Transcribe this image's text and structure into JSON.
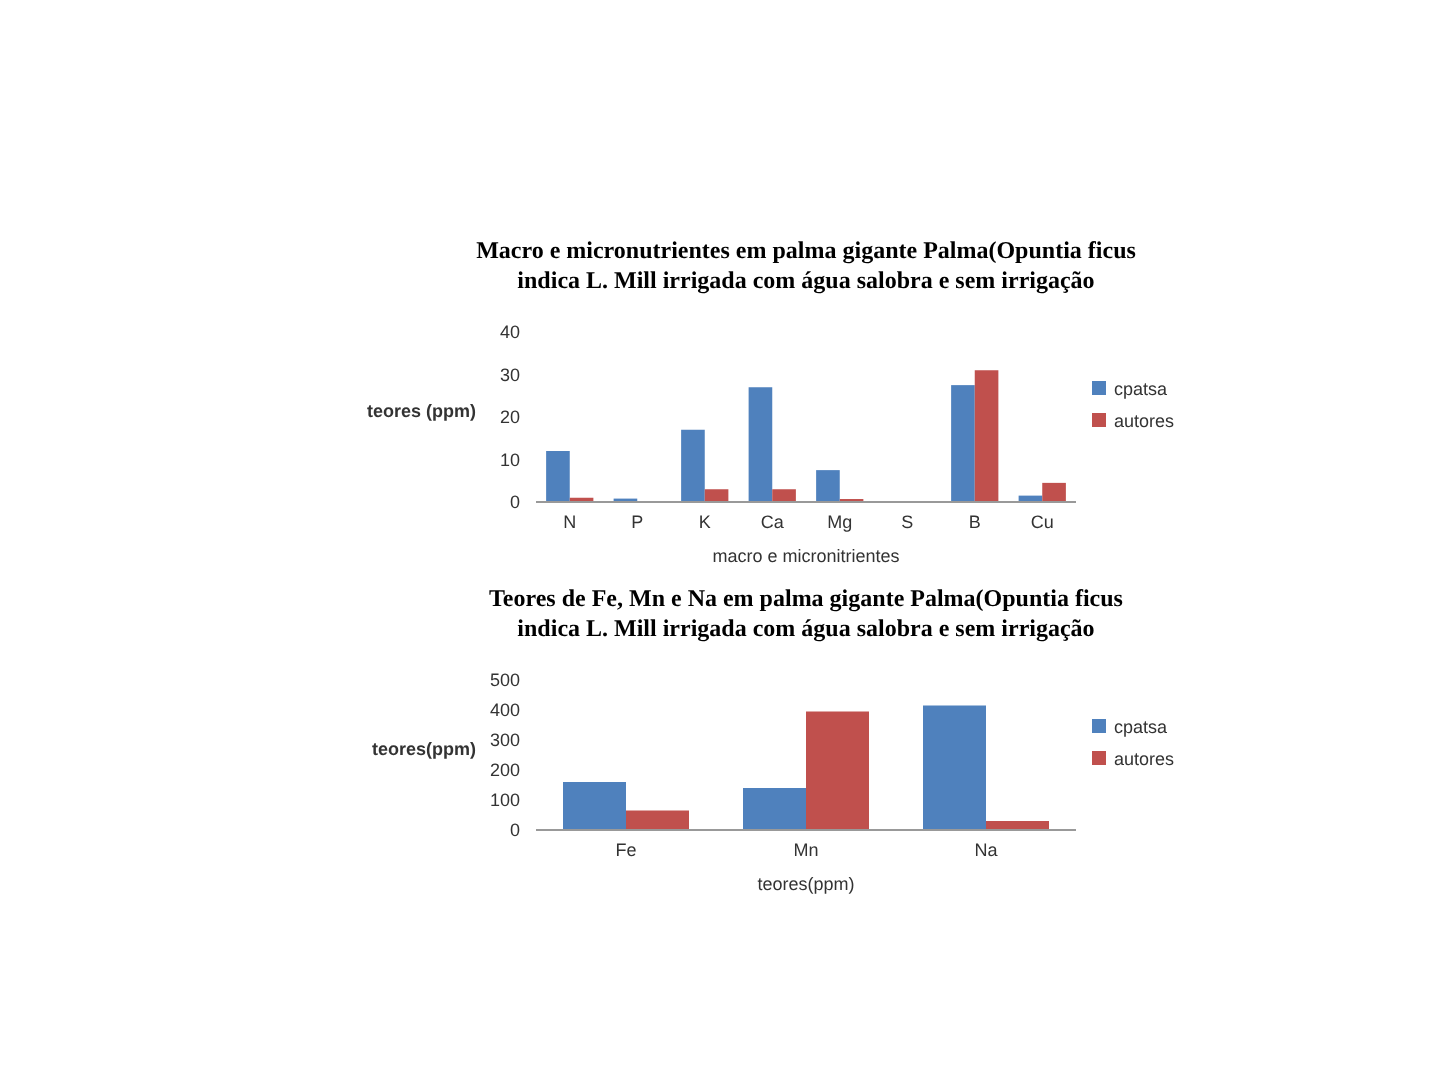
{
  "chart_data": [
    {
      "type": "bar",
      "title": "Macro e micronutrientes em palma gigante Palma(Opuntia ficus indica L. Mill irrigada com água salobra e sem irrigação",
      "xlabel": "macro e micronitrientes",
      "ylabel": "teores (ppm)",
      "categories": [
        "N",
        "P",
        "K",
        "Ca",
        "Mg",
        "S",
        "B",
        "Cu"
      ],
      "series": [
        {
          "name": "cpatsa",
          "color": "#4f81bd",
          "values": [
            12,
            0.8,
            17,
            27,
            7.5,
            0,
            27.5,
            1.5
          ]
        },
        {
          "name": "autores",
          "color": "#c0504d",
          "values": [
            1,
            0,
            3,
            3,
            0.7,
            0,
            31,
            4.5
          ]
        }
      ],
      "ylim": [
        0,
        40
      ],
      "yticks": [
        0,
        10,
        20,
        30,
        40
      ],
      "grid": false,
      "legend": "right"
    },
    {
      "type": "bar",
      "title": "Teores de Fe, Mn e Na em palma gigante Palma(Opuntia ficus indica L. Mill irrigada com água salobra e sem irrigação",
      "xlabel": "teores(ppm)",
      "ylabel": "teores(ppm)",
      "categories": [
        "Fe",
        "Mn",
        "Na"
      ],
      "series": [
        {
          "name": "cpatsa",
          "color": "#4f81bd",
          "values": [
            160,
            140,
            415
          ]
        },
        {
          "name": "autores",
          "color": "#c0504d",
          "values": [
            65,
            395,
            30
          ]
        }
      ],
      "ylim": [
        0,
        500
      ],
      "yticks": [
        0,
        100,
        200,
        300,
        400,
        500
      ],
      "grid": false,
      "legend": "right"
    }
  ]
}
